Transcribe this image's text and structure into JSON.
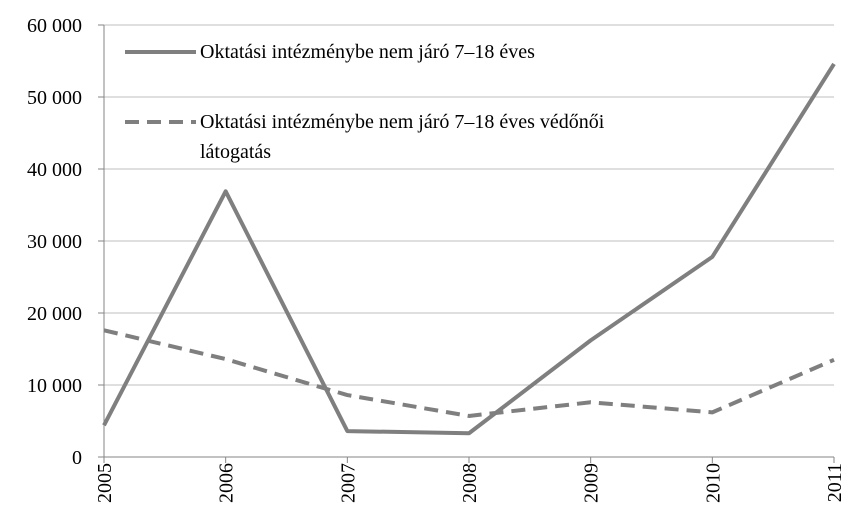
{
  "chart_data": {
    "type": "line",
    "categories": [
      "2005",
      "2006",
      "2007",
      "2008",
      "2009",
      "2010",
      "2011"
    ],
    "series": [
      {
        "name": "Oktatási intézménybe nem járó 7–18 éves",
        "color": "#7f7f7f",
        "dash": false,
        "values": [
          4400,
          36900,
          3600,
          3300,
          16200,
          27800,
          54600
        ]
      },
      {
        "name": "Oktatási intézménybe nem járó 7–18 éves védőnői látogatás",
        "color": "#7f7f7f",
        "dash": true,
        "values": [
          17600,
          13600,
          8600,
          5700,
          7600,
          6200,
          13500
        ]
      }
    ],
    "ylim": [
      0,
      60000
    ],
    "yticks": [
      0,
      {
        "value": 10000,
        "label": "10 000"
      },
      {
        "value": 20000,
        "label": "20 000"
      },
      {
        "value": 30000,
        "label": "30 000"
      },
      {
        "value": 40000,
        "label": "40 000"
      },
      {
        "value": 50000,
        "label": "50 000"
      },
      {
        "value": 60000,
        "label": "60 000"
      }
    ],
    "grid": true
  }
}
